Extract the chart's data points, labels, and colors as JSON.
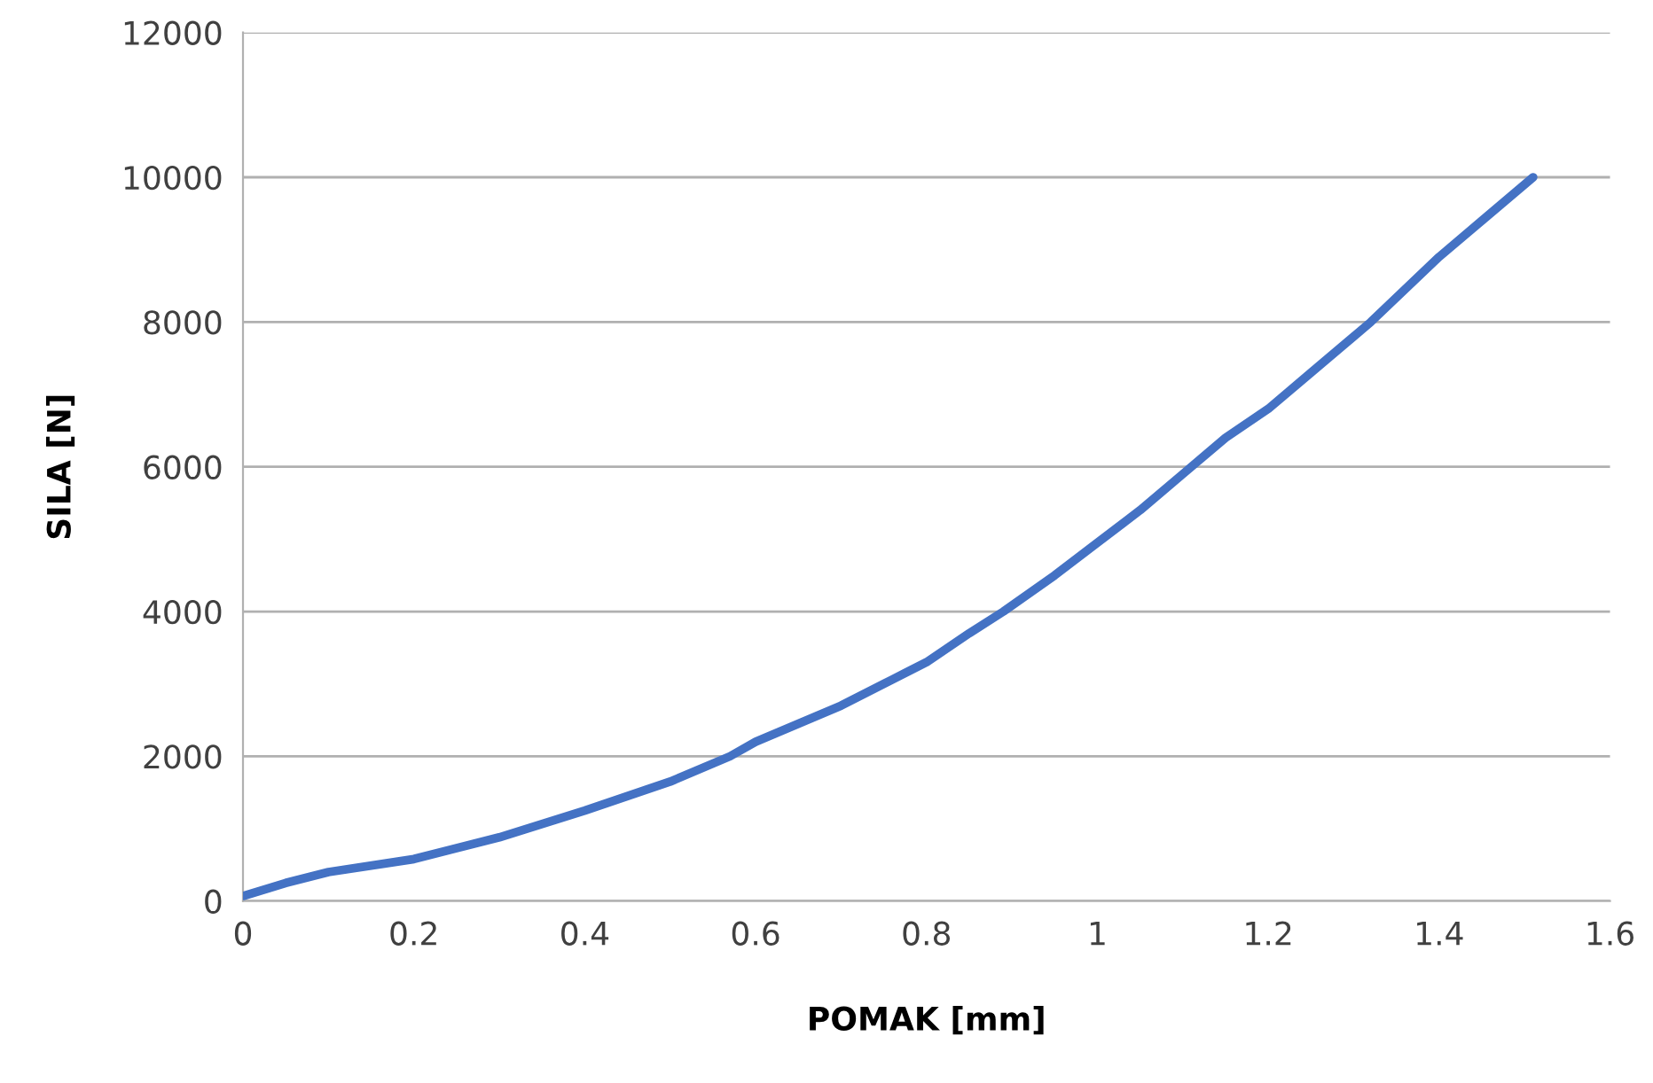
{
  "chart_data": {
    "type": "line",
    "xlabel": "POMAK [mm]",
    "ylabel": "SILA [N]",
    "xlim": [
      0,
      1.6
    ],
    "xticks": [
      0,
      0.2,
      0.4,
      0.6,
      0.8,
      1,
      1.2,
      1.4,
      1.6
    ],
    "ylim": [
      0,
      12000
    ],
    "yticks": [
      0,
      2000,
      4000,
      6000,
      8000,
      10000,
      12000
    ],
    "grid": "y",
    "legend": false,
    "marker": "none",
    "line_style": "solid",
    "series": [
      {
        "color": "#4472c4",
        "x": [
          0,
          0.05,
          0.1,
          0.2,
          0.3,
          0.4,
          0.5,
          0.57,
          0.6,
          0.7,
          0.75,
          0.8,
          0.85,
          0.89,
          0.95,
          1.0,
          1.05,
          1.1,
          1.15,
          1.2,
          1.25,
          1.32,
          1.4,
          1.45,
          1.51
        ],
        "values": [
          70,
          250,
          400,
          580,
          880,
          1250,
          1650,
          2000,
          2200,
          2700,
          3000,
          3300,
          3700,
          4000,
          4500,
          4950,
          5400,
          5900,
          6400,
          6800,
          7300,
          8000,
          8900,
          9400,
          10000
        ]
      }
    ]
  }
}
